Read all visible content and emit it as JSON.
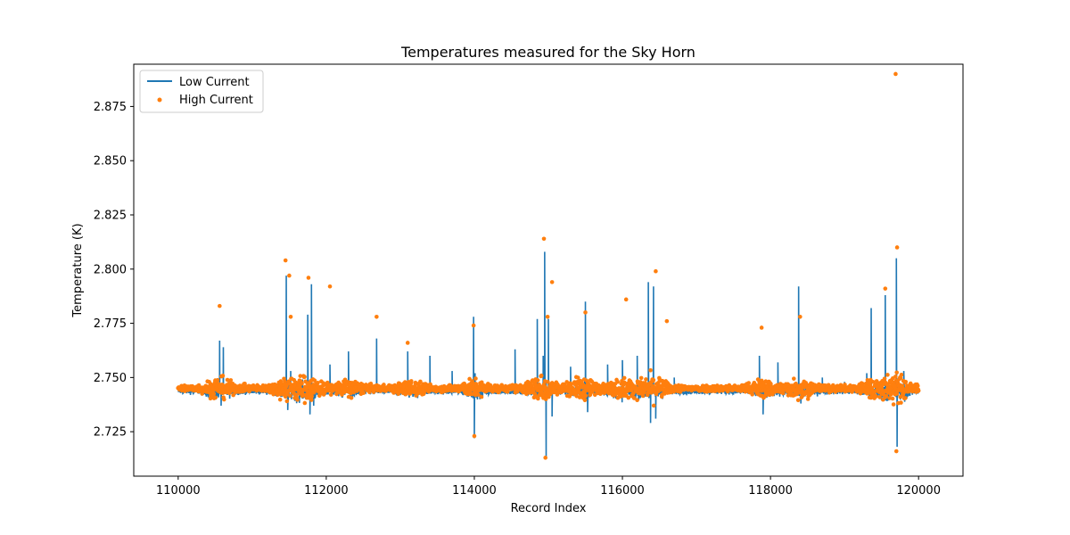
{
  "chart_data": {
    "type": "line",
    "title": "Temperatures measured for the Sky Horn",
    "xlabel": "Record Index",
    "ylabel": "Temperature (K)",
    "xlim": [
      109400,
      120600
    ],
    "ylim": [
      2.7045,
      2.8945
    ],
    "xticks": [
      110000,
      112000,
      114000,
      116000,
      118000,
      120000
    ],
    "xtick_labels": [
      "110000",
      "112000",
      "114000",
      "116000",
      "118000",
      "120000"
    ],
    "yticks": [
      2.725,
      2.75,
      2.775,
      2.8,
      2.825,
      2.85,
      2.875
    ],
    "ytick_labels": [
      "2.725",
      "2.750",
      "2.775",
      "2.800",
      "2.825",
      "2.850",
      "2.875"
    ],
    "grid": false,
    "legend": {
      "position": "top-left"
    },
    "series": [
      {
        "name": "Low Current",
        "kind": "line",
        "color": "#1f77b4",
        "baseline": 2.745,
        "x_range": [
          110000,
          120000
        ],
        "points": [
          [
            110000,
            2.745
          ],
          [
            110300,
            2.746
          ],
          [
            110560,
            2.767
          ],
          [
            110580,
            2.737
          ],
          [
            110610,
            2.764
          ],
          [
            110900,
            2.746
          ],
          [
            111200,
            2.745
          ],
          [
            111460,
            2.797
          ],
          [
            111480,
            2.735
          ],
          [
            111520,
            2.753
          ],
          [
            111750,
            2.779
          ],
          [
            111780,
            2.733
          ],
          [
            111800,
            2.793
          ],
          [
            111830,
            2.737
          ],
          [
            112050,
            2.756
          ],
          [
            112300,
            2.762
          ],
          [
            112680,
            2.768
          ],
          [
            113100,
            2.762
          ],
          [
            113400,
            2.76
          ],
          [
            113700,
            2.753
          ],
          [
            113990,
            2.778
          ],
          [
            114000,
            2.722
          ],
          [
            114010,
            2.752
          ],
          [
            114300,
            2.747
          ],
          [
            114550,
            2.763
          ],
          [
            114850,
            2.777
          ],
          [
            114930,
            2.76
          ],
          [
            114950,
            2.808
          ],
          [
            114970,
            2.713
          ],
          [
            115000,
            2.777
          ],
          [
            115050,
            2.732
          ],
          [
            115300,
            2.755
          ],
          [
            115500,
            2.785
          ],
          [
            115530,
            2.734
          ],
          [
            115800,
            2.756
          ],
          [
            116000,
            2.758
          ],
          [
            116200,
            2.76
          ],
          [
            116350,
            2.794
          ],
          [
            116380,
            2.729
          ],
          [
            116420,
            2.792
          ],
          [
            116450,
            2.731
          ],
          [
            116700,
            2.75
          ],
          [
            117000,
            2.745
          ],
          [
            117300,
            2.745
          ],
          [
            117600,
            2.746
          ],
          [
            117850,
            2.76
          ],
          [
            117900,
            2.733
          ],
          [
            118100,
            2.757
          ],
          [
            118380,
            2.792
          ],
          [
            118410,
            2.738
          ],
          [
            118700,
            2.75
          ],
          [
            119000,
            2.748
          ],
          [
            119300,
            2.752
          ],
          [
            119360,
            2.782
          ],
          [
            119550,
            2.788
          ],
          [
            119700,
            2.805
          ],
          [
            119710,
            2.718
          ],
          [
            119800,
            2.753
          ],
          [
            120000,
            2.745
          ]
        ]
      },
      {
        "name": "High Current",
        "kind": "scatter",
        "color": "#ff7f0e",
        "baseline": 2.745,
        "x_range": [
          110000,
          120000
        ],
        "points": [
          [
            110560,
            2.783
          ],
          [
            111450,
            2.804
          ],
          [
            111500,
            2.797
          ],
          [
            111520,
            2.778
          ],
          [
            111760,
            2.796
          ],
          [
            112050,
            2.792
          ],
          [
            112680,
            2.778
          ],
          [
            113100,
            2.766
          ],
          [
            113990,
            2.774
          ],
          [
            114000,
            2.723
          ],
          [
            114940,
            2.814
          ],
          [
            114960,
            2.713
          ],
          [
            114990,
            2.778
          ],
          [
            115050,
            2.794
          ],
          [
            115500,
            2.78
          ],
          [
            116050,
            2.786
          ],
          [
            116450,
            2.799
          ],
          [
            116600,
            2.776
          ],
          [
            117880,
            2.773
          ],
          [
            118400,
            2.778
          ],
          [
            119550,
            2.791
          ],
          [
            119690,
            2.89
          ],
          [
            119710,
            2.81
          ],
          [
            119700,
            2.716
          ]
        ]
      }
    ]
  }
}
